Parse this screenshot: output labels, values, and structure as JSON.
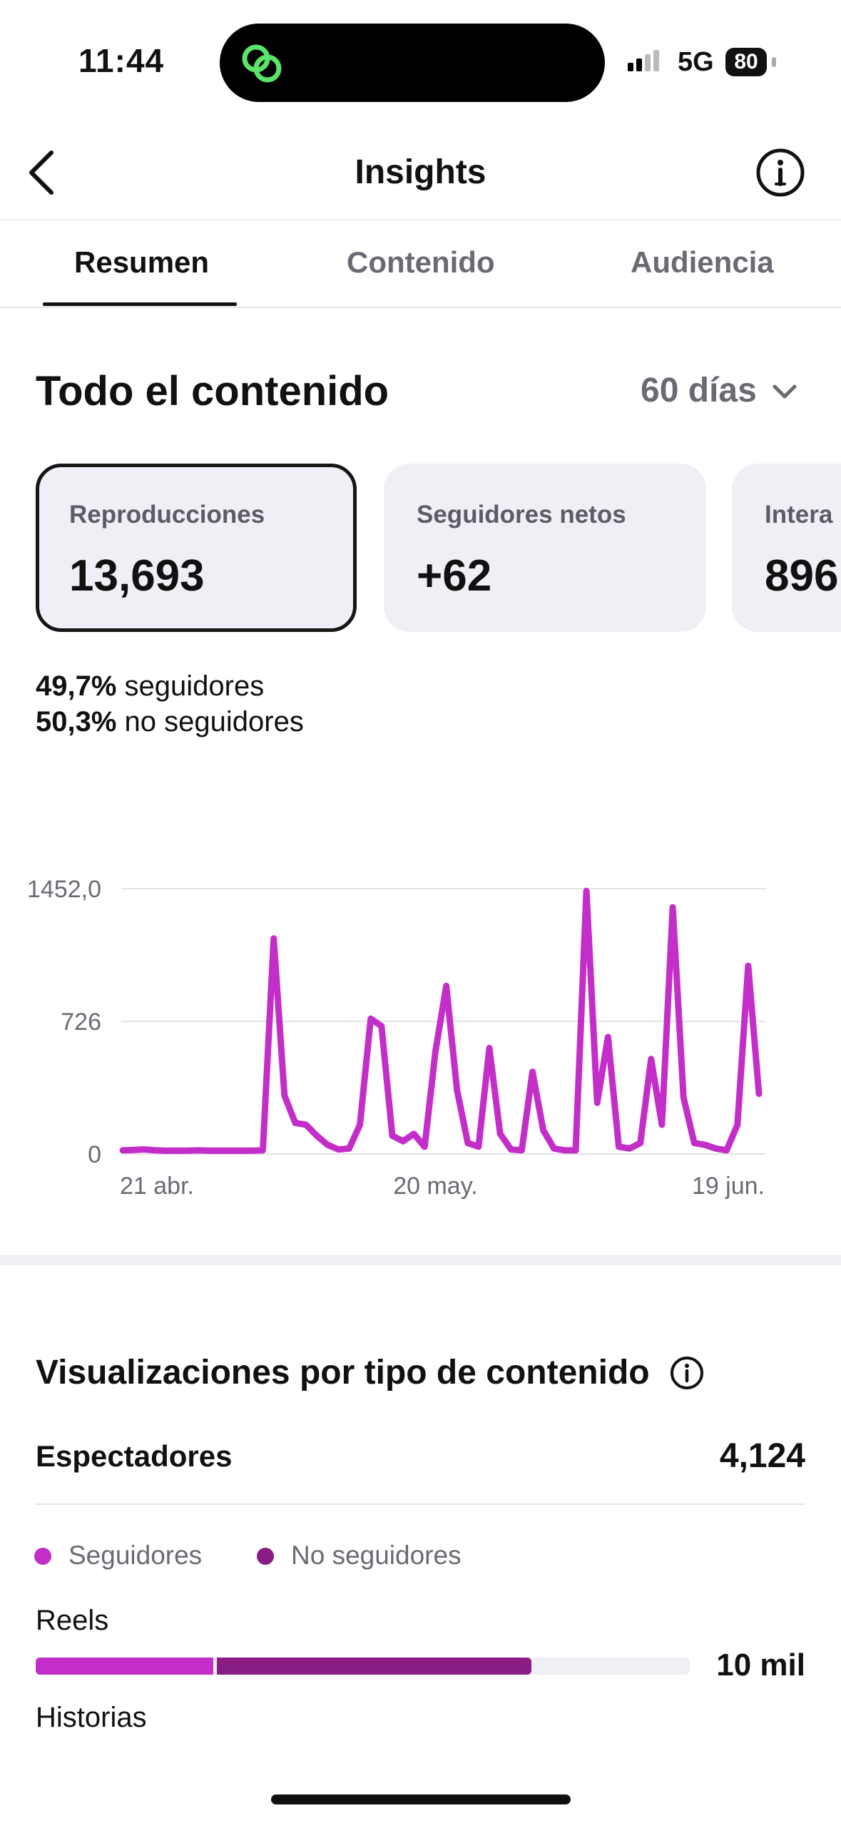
{
  "status_bar": {
    "time": "11:44",
    "network": "5G",
    "battery": "80",
    "island_icon": "link-rings-icon"
  },
  "header": {
    "title": "Insights",
    "back_icon": "chevron-left-icon",
    "info_icon": "info-icon"
  },
  "tabs": [
    {
      "label": "Resumen",
      "active": true
    },
    {
      "label": "Contenido",
      "active": false
    },
    {
      "label": "Audiencia",
      "active": false
    }
  ],
  "section": {
    "title": "Todo el contenido",
    "period": "60 días"
  },
  "metric_cards": [
    {
      "label": "Reproducciones",
      "value": "13,693",
      "selected": true
    },
    {
      "label": "Seguidores netos",
      "value": "+62",
      "selected": false
    },
    {
      "label": "Intera",
      "value": "896",
      "selected": false
    }
  ],
  "audience_split": [
    {
      "percent": "49,7%",
      "label": " seguidores"
    },
    {
      "percent": "50,3%",
      "label": " no seguidores"
    }
  ],
  "colors": {
    "accent_magenta": "#c42ec8",
    "dark_purple": "#8a1d84",
    "card_bg": "#eff0f5",
    "muted_text": "#6a6a73"
  },
  "chart_data": {
    "type": "line",
    "y_tick_labels": [
      "1452,0",
      "726",
      "0"
    ],
    "y_ticks": [
      1452,
      726,
      0
    ],
    "ylim": [
      0,
      1452
    ],
    "x_tick_labels": [
      "21 abr.",
      "20 may.",
      "19 jun."
    ],
    "x_tick_index": [
      0,
      29,
      59
    ],
    "grid": true,
    "series": [
      {
        "color": "#c42ec8",
        "values": [
          20,
          22,
          25,
          20,
          18,
          18,
          18,
          20,
          18,
          18,
          18,
          18,
          18,
          20,
          1180,
          320,
          170,
          160,
          100,
          50,
          25,
          30,
          160,
          740,
          700,
          100,
          70,
          110,
          40,
          560,
          920,
          350,
          60,
          40,
          580,
          110,
          25,
          20,
          450,
          130,
          30,
          20,
          20,
          1440,
          280,
          640,
          40,
          30,
          60,
          520,
          160,
          1350,
          310,
          60,
          50,
          30,
          20,
          160,
          1030,
          330
        ]
      }
    ]
  },
  "visualizations": {
    "title": "Visualizaciones por tipo de contenido",
    "info_icon": "info-icon",
    "viewers_label": "Espectadores",
    "viewers_value": "4,124",
    "legend": [
      {
        "label": "Seguidores",
        "color": "#c42ec8"
      },
      {
        "label": "No seguidores",
        "color": "#8a1d84"
      }
    ],
    "rows": [
      {
        "label": "Reels",
        "value": "10 mil",
        "followers_fraction": 0.272,
        "non_followers_fraction": 0.486
      },
      {
        "label": "Historias"
      }
    ]
  }
}
